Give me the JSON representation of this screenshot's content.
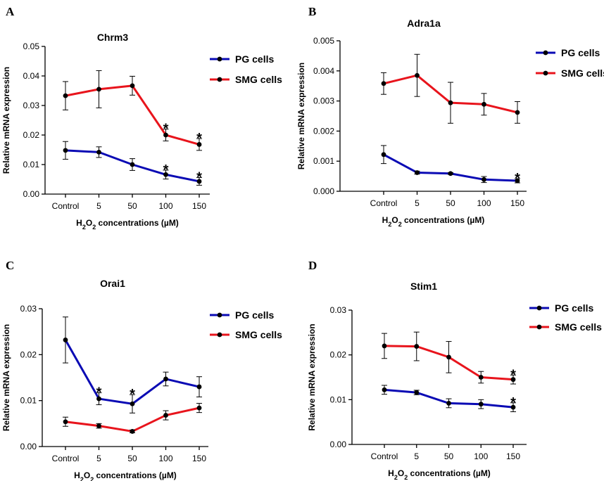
{
  "chart_data": [
    {
      "type": "line",
      "panel_label": "A",
      "title": "Chrm3",
      "xlabel": {
        "prefix": "H",
        "sub1": "2",
        "mid": "O",
        "sub2": "2",
        "suffix": " concentrations (µM)"
      },
      "ylabel": "Relative mRNA expression",
      "categories": [
        "Control",
        "5",
        "50",
        "100",
        "150"
      ],
      "ylim": [
        0,
        0.05
      ],
      "yticks": [
        "0.00",
        "0.01",
        "0.02",
        "0.03",
        "0.04",
        "0.05"
      ],
      "legend_position": "top-right",
      "significance_marker": "*",
      "series": [
        {
          "name": "PG cells",
          "color": "#0a0ab4",
          "values": [
            0.0148,
            0.0142,
            0.01,
            0.0066,
            0.0043
          ],
          "errors": [
            0.003,
            0.0018,
            0.002,
            0.0015,
            0.0013
          ],
          "significant": [
            false,
            false,
            false,
            true,
            true
          ]
        },
        {
          "name": "SMG cells",
          "color": "#e8141c",
          "values": [
            0.0333,
            0.0355,
            0.0367,
            0.02,
            0.0168
          ],
          "errors": [
            0.0048,
            0.0063,
            0.0032,
            0.002,
            0.002
          ],
          "significant": [
            false,
            false,
            false,
            true,
            true
          ]
        }
      ]
    },
    {
      "type": "line",
      "panel_label": "B",
      "title": "Adra1a",
      "xlabel": {
        "prefix": "H",
        "sub1": "2",
        "mid": "O",
        "sub2": "2",
        "suffix": " concentrations (µM)"
      },
      "ylabel": "Relative mRNA expression",
      "categories": [
        "Control",
        "5",
        "50",
        "100",
        "150"
      ],
      "ylim": [
        0,
        0.005
      ],
      "yticks": [
        "0.000",
        "0.001",
        "0.002",
        "0.003",
        "0.004",
        "0.005"
      ],
      "legend_position": "top-right",
      "significance_marker": "*",
      "series": [
        {
          "name": "PG cells",
          "color": "#0a0ab4",
          "values": [
            0.00122,
            0.00062,
            0.00059,
            0.00039,
            0.00035
          ],
          "errors": [
            0.0003,
            5e-05,
            3e-05,
            0.0001,
            7e-05
          ],
          "significant": [
            false,
            false,
            false,
            false,
            true
          ]
        },
        {
          "name": "SMG cells",
          "color": "#e8141c",
          "values": [
            0.00358,
            0.00385,
            0.00294,
            0.00289,
            0.00262
          ],
          "errors": [
            0.00036,
            0.0007,
            0.00068,
            0.00036,
            0.00036
          ],
          "significant": [
            false,
            false,
            false,
            false,
            false
          ]
        }
      ]
    },
    {
      "type": "line",
      "panel_label": "C",
      "title": "Orai1",
      "xlabel": {
        "prefix": "H",
        "sub1": "2",
        "mid": "O",
        "sub2": "2",
        "suffix": " concentrations (µM)"
      },
      "ylabel": "Relative mRNA expression",
      "categories": [
        "Control",
        "5",
        "50",
        "100",
        "150"
      ],
      "ylim": [
        0,
        0.03
      ],
      "yticks": [
        "0.00",
        "0.01",
        "0.02",
        "0.03"
      ],
      "legend_position": "top-right",
      "significance_marker": "*",
      "series": [
        {
          "name": "PG cells",
          "color": "#0a0ab4",
          "values": [
            0.0232,
            0.0104,
            0.0093,
            0.0147,
            0.013
          ],
          "errors": [
            0.005,
            0.0013,
            0.002,
            0.0015,
            0.0022
          ],
          "significant": [
            false,
            true,
            true,
            false,
            false
          ]
        },
        {
          "name": "SMG cells",
          "color": "#e8141c",
          "values": [
            0.0054,
            0.0045,
            0.0033,
            0.0068,
            0.0084
          ],
          "errors": [
            0.001,
            0.0005,
            0.0003,
            0.001,
            0.001
          ],
          "significant": [
            false,
            false,
            false,
            false,
            false
          ]
        }
      ]
    },
    {
      "type": "line",
      "panel_label": "D",
      "title": "Stim1",
      "xlabel": {
        "prefix": "H",
        "sub1": "2",
        "mid": "O",
        "sub2": "2",
        "suffix": " concentrations (µM)"
      },
      "ylabel": "Relative mRNA expression",
      "categories": [
        "Control",
        "5",
        "50",
        "100",
        "150"
      ],
      "ylim": [
        0,
        0.03
      ],
      "yticks": [
        "0.00",
        "0.01",
        "0.02",
        "0.03"
      ],
      "legend_position": "top-right",
      "significance_marker": "*",
      "series": [
        {
          "name": "PG cells",
          "color": "#0a0ab4",
          "values": [
            0.0122,
            0.0116,
            0.0092,
            0.009,
            0.0083
          ],
          "errors": [
            0.001,
            0.0005,
            0.001,
            0.001,
            0.001
          ],
          "significant": [
            false,
            false,
            false,
            false,
            true
          ]
        },
        {
          "name": "SMG cells",
          "color": "#e8141c",
          "values": [
            0.022,
            0.0219,
            0.0195,
            0.015,
            0.0145
          ],
          "errors": [
            0.0028,
            0.0032,
            0.0035,
            0.0013,
            0.001
          ],
          "significant": [
            false,
            false,
            false,
            false,
            true
          ]
        }
      ]
    }
  ]
}
